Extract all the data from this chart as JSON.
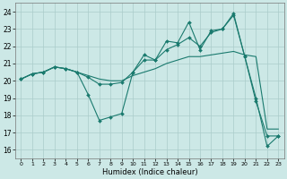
{
  "xlabel": "Humidex (Indice chaleur)",
  "bg_color": "#cce8e6",
  "grid_color": "#aaccca",
  "line_color": "#1a7a6e",
  "xlim": [
    -0.5,
    23.5
  ],
  "ylim": [
    15.5,
    24.5
  ],
  "yticks": [
    16,
    17,
    18,
    19,
    20,
    21,
    22,
    23,
    24
  ],
  "xticks": [
    0,
    1,
    2,
    3,
    4,
    5,
    6,
    7,
    8,
    9,
    10,
    11,
    12,
    13,
    14,
    15,
    16,
    17,
    18,
    19,
    20,
    21,
    22,
    23
  ],
  "lines": [
    {
      "x": [
        0,
        1,
        2,
        3,
        4,
        5,
        6,
        7,
        8,
        9,
        10,
        11,
        12,
        13,
        14,
        15,
        16,
        17,
        18,
        19,
        20,
        21,
        22,
        23
      ],
      "y": [
        20.1,
        20.4,
        20.5,
        20.8,
        20.7,
        20.5,
        19.2,
        17.7,
        17.9,
        18.1,
        20.5,
        21.5,
        21.2,
        22.3,
        22.2,
        23.4,
        21.8,
        22.9,
        23.0,
        23.9,
        21.4,
        19.0,
        16.2,
        16.8
      ],
      "has_markers": true
    },
    {
      "x": [
        0,
        1,
        2,
        3,
        4,
        5,
        6,
        7,
        8,
        9,
        10,
        11,
        12,
        13,
        14,
        15,
        16,
        17,
        18,
        19,
        20,
        21,
        22,
        23
      ],
      "y": [
        20.1,
        20.4,
        20.5,
        20.8,
        20.7,
        20.5,
        20.3,
        20.1,
        20.0,
        20.0,
        20.3,
        20.5,
        20.7,
        21.0,
        21.2,
        21.4,
        21.4,
        21.5,
        21.6,
        21.7,
        21.5,
        21.4,
        17.2,
        17.2
      ],
      "has_markers": false
    },
    {
      "x": [
        0,
        1,
        2,
        3,
        4,
        5,
        6,
        7,
        8,
        9,
        10,
        11,
        12,
        13,
        14,
        15,
        16,
        17,
        18,
        19,
        20,
        21,
        22,
        23
      ],
      "y": [
        20.1,
        20.4,
        20.5,
        20.8,
        20.7,
        20.5,
        20.2,
        19.8,
        19.8,
        19.9,
        20.5,
        21.2,
        21.2,
        21.8,
        22.1,
        22.5,
        22.0,
        22.8,
        23.0,
        23.8,
        21.4,
        18.8,
        16.8,
        16.8
      ],
      "has_markers": true
    }
  ]
}
